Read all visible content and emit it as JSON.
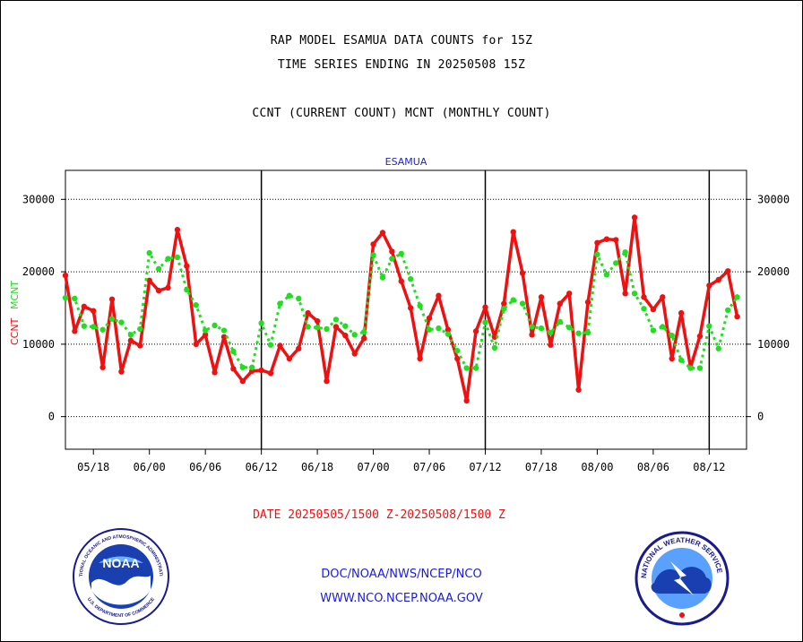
{
  "header": {
    "line1": "RAP MODEL ESAMUA DATA COUNTS for 15Z",
    "line2": "TIME SERIES ENDING IN 20250508 15Z",
    "line3": "CCNT (CURRENT COUNT) MCNT (MONTHLY COUNT)"
  },
  "footer": {
    "date_range": "DATE 20250505/1500 Z-20250508/1500 Z",
    "org_path": "DOC/NOAA/NWS/NCEP/NCO",
    "website": "WWW.NCO.NCEP.NOAA.GOV"
  },
  "logos": {
    "noaa_center": "NOAA",
    "noaa_ring_top": "NATIONAL OCEANIC AND ATMOSPHERIC ADMINISTRATION",
    "noaa_ring_bottom": "U.S. DEPARTMENT OF COMMERCE",
    "nws_ring": "NATIONAL WEATHER SERVICE"
  },
  "colors": {
    "ccnt": "#ee1111",
    "mcnt": "#22dd22",
    "legend_blue": "#2222cc",
    "footer_blue": "#1a1ae6",
    "date_red": "#ee1111"
  },
  "chart_data": {
    "type": "line",
    "title": "ESAMUA",
    "xlabel": "",
    "ylabel_left": [
      "CCNT",
      "MCNT"
    ],
    "ylim": [
      -4500,
      34000
    ],
    "yticks": [
      0,
      10000,
      20000,
      30000
    ],
    "xlim": [
      0,
      73
    ],
    "xticks": [
      {
        "label": "05/18",
        "x": 3
      },
      {
        "label": "06/00",
        "x": 9
      },
      {
        "label": "06/06",
        "x": 15
      },
      {
        "label": "06/12",
        "x": 21
      },
      {
        "label": "06/18",
        "x": 27
      },
      {
        "label": "07/00",
        "x": 33
      },
      {
        "label": "07/06",
        "x": 39
      },
      {
        "label": "07/12",
        "x": 45
      },
      {
        "label": "07/18",
        "x": 51
      },
      {
        "label": "08/00",
        "x": 57
      },
      {
        "label": "08/06",
        "x": 63
      },
      {
        "label": "08/12",
        "x": 69
      }
    ],
    "day_boundaries": [
      21,
      45,
      69
    ],
    "grid": true,
    "series": [
      {
        "name": "CCNT",
        "style": "solid",
        "values": [
          19500,
          11800,
          15200,
          14600,
          6800,
          16200,
          6200,
          10500,
          9800,
          18800,
          17400,
          17800,
          25800,
          20800,
          10000,
          11300,
          6100,
          11000,
          6600,
          4900,
          6300,
          6400,
          6000,
          9800,
          8000,
          9400,
          14300,
          13200,
          4900,
          12400,
          11200,
          8700,
          10800,
          23800,
          25400,
          22800,
          18700,
          15000,
          8000,
          13600,
          16700,
          12000,
          8000,
          2200,
          11800,
          15100,
          11000,
          15600,
          25500,
          19800,
          11300,
          16500,
          9900,
          15600,
          17000,
          3700,
          15800,
          24000,
          24500,
          24400,
          17000,
          27500,
          16500,
          14800,
          16500,
          8000,
          14300,
          6800,
          11100,
          18100,
          18900,
          20100,
          13800
        ]
      },
      {
        "name": "MCNT",
        "style": "dashed",
        "values": [
          16400,
          16300,
          12500,
          12400,
          12000,
          13500,
          13000,
          11300,
          12100,
          22600,
          20400,
          21800,
          22000,
          17500,
          15400,
          11900,
          12600,
          11900,
          9000,
          6800,
          6800,
          12900,
          9900,
          15600,
          16700,
          16300,
          12400,
          12300,
          12100,
          13400,
          12500,
          11300,
          11700,
          22300,
          19200,
          21800,
          22500,
          19000,
          15300,
          12000,
          12200,
          11400,
          9100,
          6700,
          6700,
          13000,
          9500,
          14900,
          16100,
          15600,
          12400,
          12200,
          11600,
          13100,
          12300,
          11500,
          11600,
          22400,
          19600,
          21200,
          22700,
          17000,
          14900,
          11900,
          12400,
          11200,
          7800,
          6700,
          6700,
          12500,
          9400,
          14700,
          16500
        ]
      }
    ]
  }
}
